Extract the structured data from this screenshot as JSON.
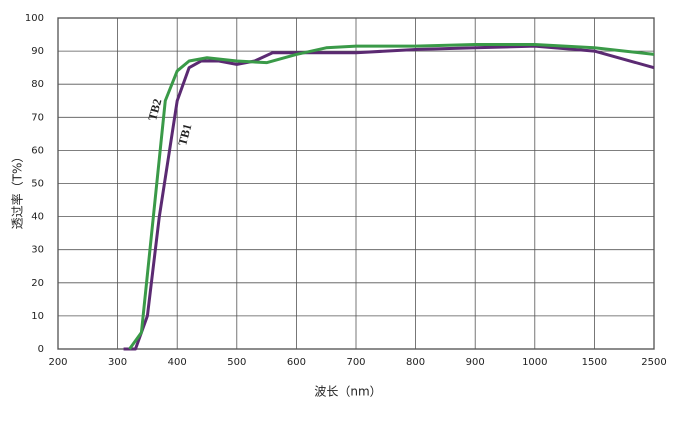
{
  "chart_data": {
    "type": "line",
    "x_label": "波长（nm）",
    "y_label": "透过率（T%）",
    "xticks": [
      200,
      300,
      400,
      500,
      600,
      700,
      800,
      900,
      1000,
      1500,
      2500
    ],
    "xlim": [
      200,
      2500
    ],
    "ylim": [
      0,
      100
    ],
    "yticks": [
      0,
      10,
      20,
      30,
      40,
      50,
      60,
      70,
      80,
      90,
      100
    ],
    "grid": true,
    "series": [
      {
        "name": "TB1",
        "color": "#5b2a72",
        "x": [
          310,
          330,
          350,
          370,
          400,
          420,
          440,
          470,
          500,
          530,
          560,
          600,
          700,
          800,
          900,
          1000,
          1500,
          2500
        ],
        "values": [
          0,
          0,
          10,
          40,
          75,
          85,
          87,
          87,
          86,
          87,
          89.5,
          89.5,
          89.5,
          90.5,
          91,
          91.5,
          90,
          85
        ]
      },
      {
        "name": "TB2",
        "color": "#3a9a48",
        "x": [
          320,
          340,
          360,
          380,
          400,
          420,
          450,
          500,
          550,
          600,
          650,
          700,
          800,
          900,
          1000,
          1500,
          2500
        ],
        "values": [
          0,
          5,
          40,
          75,
          84,
          87,
          88,
          87,
          86.5,
          89,
          91,
          91.5,
          91.5,
          92,
          92,
          91,
          89
        ]
      }
    ]
  }
}
